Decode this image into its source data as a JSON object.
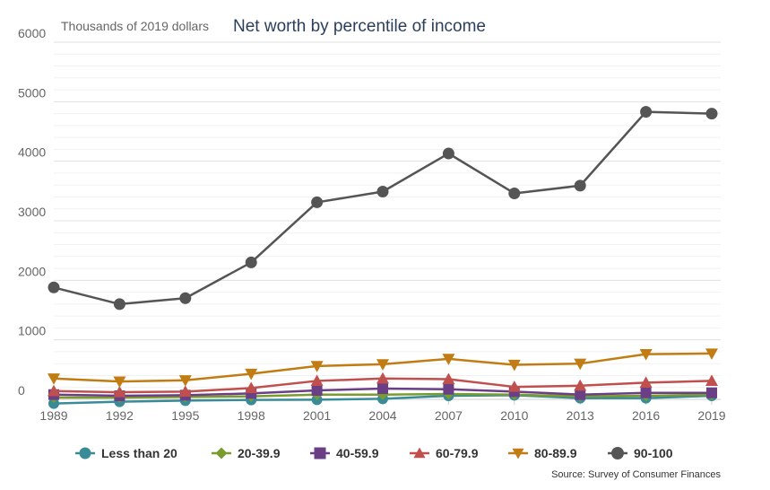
{
  "chart_data": {
    "type": "line",
    "title": "Net worth by percentile of income",
    "ylabel": "Thousands of 2019 dollars",
    "source": "Source: Survey of Consumer Finances",
    "x": [
      "1989",
      "1992",
      "1995",
      "1998",
      "2001",
      "2004",
      "2007",
      "2010",
      "2013",
      "2016",
      "2019"
    ],
    "ylim": [
      0,
      6000
    ],
    "yticks": [
      "0",
      "1000",
      "2000",
      "3000",
      "4000",
      "5000",
      "6000"
    ],
    "ytick_values": [
      0,
      1000,
      2000,
      3000,
      4000,
      5000,
      6000
    ],
    "grid": true,
    "legend_position": "bottom",
    "series": [
      {
        "name": "Less than 20",
        "color": "#3a8b98",
        "marker": "circle",
        "values": [
          -70,
          -40,
          -20,
          -10,
          -5,
          10,
          60,
          70,
          20,
          20,
          60
        ]
      },
      {
        "name": "20-39.9",
        "color": "#7a9c2e",
        "marker": "diamond",
        "values": [
          30,
          30,
          40,
          50,
          80,
          80,
          90,
          80,
          50,
          60,
          80
        ]
      },
      {
        "name": "40-59.9",
        "color": "#6b3f86",
        "marker": "square",
        "values": [
          80,
          60,
          70,
          100,
          150,
          180,
          170,
          130,
          80,
          110,
          110
        ]
      },
      {
        "name": "60-79.9",
        "color": "#c0504d",
        "marker": "triangle-up",
        "values": [
          140,
          120,
          130,
          190,
          310,
          350,
          340,
          210,
          230,
          280,
          310
        ]
      },
      {
        "name": "80-89.9",
        "color": "#c17c13",
        "marker": "triangle-down",
        "values": [
          350,
          300,
          320,
          430,
          560,
          590,
          680,
          580,
          600,
          760,
          770
        ]
      },
      {
        "name": "90-100",
        "color": "#555555",
        "marker": "circle",
        "values": [
          1880,
          1600,
          1700,
          2300,
          3310,
          3490,
          4130,
          3460,
          3590,
          4830,
          4800
        ]
      }
    ]
  }
}
